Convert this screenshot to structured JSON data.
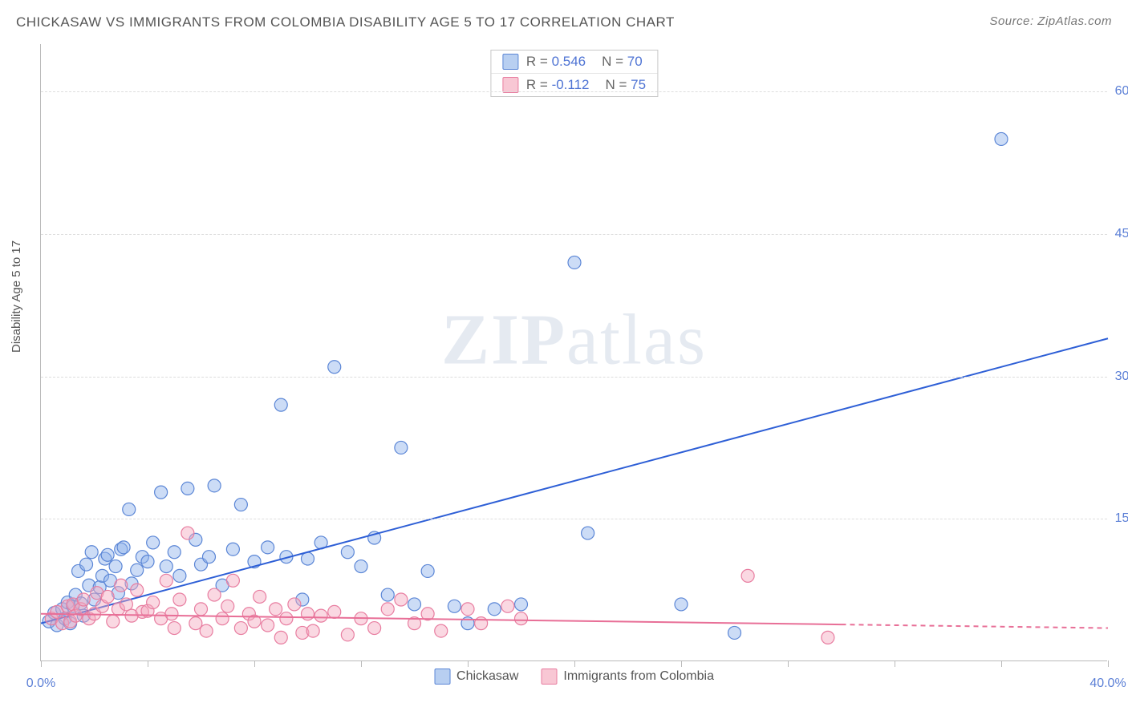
{
  "title": "CHICKASAW VS IMMIGRANTS FROM COLOMBIA DISABILITY AGE 5 TO 17 CORRELATION CHART",
  "source": "Source: ZipAtlas.com",
  "ylabel": "Disability Age 5 to 17",
  "watermark_bold": "ZIP",
  "watermark_rest": "atlas",
  "chart": {
    "type": "scatter",
    "background_color": "#ffffff",
    "grid_color": "#dddddd",
    "axis_color": "#bbbbbb",
    "tick_label_color": "#5b7fd6",
    "xlim": [
      0,
      40
    ],
    "ylim": [
      0,
      65
    ],
    "x_ticks": [
      0,
      4,
      8,
      12,
      16,
      20,
      24,
      28,
      32,
      36,
      40
    ],
    "y_ticks": [
      15,
      30,
      45,
      60
    ],
    "x_axis_labels": [
      {
        "v": 0,
        "label": "0.0%"
      },
      {
        "v": 40,
        "label": "40.0%"
      }
    ],
    "y_axis_labels": [
      {
        "v": 15,
        "label": "15.0%"
      },
      {
        "v": 30,
        "label": "30.0%"
      },
      {
        "v": 45,
        "label": "45.0%"
      },
      {
        "v": 60,
        "label": "60.0%"
      }
    ],
    "marker_radius": 8,
    "marker_fill_opacity": 0.45,
    "marker_stroke_width": 1.2,
    "line_width": 2,
    "series": [
      {
        "name": "Chickasaw",
        "color_fill": "#8fb1ec",
        "color_stroke": "#5b86d6",
        "line_color": "#2e5fd6",
        "R": "0.546",
        "N": "70",
        "trend": {
          "x1": 0,
          "y1": 4.0,
          "x2": 40,
          "y2": 34.0,
          "dashed_from": null
        },
        "points": [
          [
            0.3,
            4.2
          ],
          [
            0.5,
            5.1
          ],
          [
            0.6,
            3.8
          ],
          [
            0.8,
            5.5
          ],
          [
            0.9,
            4.5
          ],
          [
            1.0,
            6.2
          ],
          [
            1.1,
            4.0
          ],
          [
            1.2,
            5.8
          ],
          [
            1.3,
            7.0
          ],
          [
            1.4,
            9.5
          ],
          [
            1.5,
            6.1
          ],
          [
            1.6,
            4.8
          ],
          [
            1.7,
            10.2
          ],
          [
            1.8,
            8.0
          ],
          [
            1.9,
            11.5
          ],
          [
            2.0,
            6.5
          ],
          [
            2.2,
            7.8
          ],
          [
            2.3,
            9.0
          ],
          [
            2.4,
            10.8
          ],
          [
            2.5,
            11.2
          ],
          [
            2.6,
            8.5
          ],
          [
            2.8,
            10.0
          ],
          [
            2.9,
            7.2
          ],
          [
            3.0,
            11.8
          ],
          [
            3.1,
            12.0
          ],
          [
            3.3,
            16.0
          ],
          [
            3.4,
            8.2
          ],
          [
            3.6,
            9.6
          ],
          [
            3.8,
            11.0
          ],
          [
            4.0,
            10.5
          ],
          [
            4.2,
            12.5
          ],
          [
            4.5,
            17.8
          ],
          [
            4.7,
            10.0
          ],
          [
            5.0,
            11.5
          ],
          [
            5.2,
            9.0
          ],
          [
            5.5,
            18.2
          ],
          [
            5.8,
            12.8
          ],
          [
            6.0,
            10.2
          ],
          [
            6.3,
            11.0
          ],
          [
            6.5,
            18.5
          ],
          [
            6.8,
            8.0
          ],
          [
            7.2,
            11.8
          ],
          [
            7.5,
            16.5
          ],
          [
            8.0,
            10.5
          ],
          [
            8.5,
            12.0
          ],
          [
            9.0,
            27.0
          ],
          [
            9.2,
            11.0
          ],
          [
            9.8,
            6.5
          ],
          [
            10.0,
            10.8
          ],
          [
            10.5,
            12.5
          ],
          [
            11.0,
            31.0
          ],
          [
            11.5,
            11.5
          ],
          [
            12.0,
            10.0
          ],
          [
            12.5,
            13.0
          ],
          [
            13.0,
            7.0
          ],
          [
            13.5,
            22.5
          ],
          [
            14.0,
            6.0
          ],
          [
            14.5,
            9.5
          ],
          [
            15.5,
            5.8
          ],
          [
            16.0,
            4.0
          ],
          [
            17.0,
            5.5
          ],
          [
            18.0,
            6.0
          ],
          [
            20.0,
            42.0
          ],
          [
            20.5,
            13.5
          ],
          [
            24.0,
            6.0
          ],
          [
            26.0,
            3.0
          ],
          [
            36.0,
            55.0
          ]
        ]
      },
      {
        "name": "Immigrants from Colombia",
        "color_fill": "#f5a8bf",
        "color_stroke": "#e87da0",
        "line_color": "#e86f97",
        "R": "-0.112",
        "N": "75",
        "trend": {
          "x1": 0,
          "y1": 5.0,
          "x2": 40,
          "y2": 3.5,
          "dashed_from": 30
        },
        "points": [
          [
            0.4,
            4.5
          ],
          [
            0.6,
            5.2
          ],
          [
            0.8,
            4.0
          ],
          [
            1.0,
            5.8
          ],
          [
            1.1,
            4.2
          ],
          [
            1.2,
            6.0
          ],
          [
            1.3,
            4.8
          ],
          [
            1.5,
            5.5
          ],
          [
            1.6,
            6.5
          ],
          [
            1.8,
            4.5
          ],
          [
            2.0,
            5.0
          ],
          [
            2.1,
            7.2
          ],
          [
            2.3,
            5.8
          ],
          [
            2.5,
            6.8
          ],
          [
            2.7,
            4.2
          ],
          [
            2.9,
            5.5
          ],
          [
            3.0,
            8.0
          ],
          [
            3.2,
            6.0
          ],
          [
            3.4,
            4.8
          ],
          [
            3.6,
            7.5
          ],
          [
            3.8,
            5.2
          ],
          [
            4.0,
            5.3
          ],
          [
            4.2,
            6.2
          ],
          [
            4.5,
            4.5
          ],
          [
            4.7,
            8.5
          ],
          [
            4.9,
            5.0
          ],
          [
            5.0,
            3.5
          ],
          [
            5.2,
            6.5
          ],
          [
            5.5,
            13.5
          ],
          [
            5.8,
            4.0
          ],
          [
            6.0,
            5.5
          ],
          [
            6.2,
            3.2
          ],
          [
            6.5,
            7.0
          ],
          [
            6.8,
            4.5
          ],
          [
            7.0,
            5.8
          ],
          [
            7.2,
            8.5
          ],
          [
            7.5,
            3.5
          ],
          [
            7.8,
            5.0
          ],
          [
            8.0,
            4.2
          ],
          [
            8.2,
            6.8
          ],
          [
            8.5,
            3.8
          ],
          [
            8.8,
            5.5
          ],
          [
            9.0,
            2.5
          ],
          [
            9.2,
            4.5
          ],
          [
            9.5,
            6.0
          ],
          [
            9.8,
            3.0
          ],
          [
            10.0,
            5.0
          ],
          [
            10.2,
            3.2
          ],
          [
            10.5,
            4.8
          ],
          [
            11.0,
            5.2
          ],
          [
            11.5,
            2.8
          ],
          [
            12.0,
            4.5
          ],
          [
            12.5,
            3.5
          ],
          [
            13.0,
            5.5
          ],
          [
            13.5,
            6.5
          ],
          [
            14.0,
            4.0
          ],
          [
            14.5,
            5.0
          ],
          [
            15.0,
            3.2
          ],
          [
            16.0,
            5.5
          ],
          [
            16.5,
            4.0
          ],
          [
            17.5,
            5.8
          ],
          [
            18.0,
            4.5
          ],
          [
            26.5,
            9.0
          ],
          [
            29.5,
            2.5
          ]
        ]
      }
    ]
  }
}
